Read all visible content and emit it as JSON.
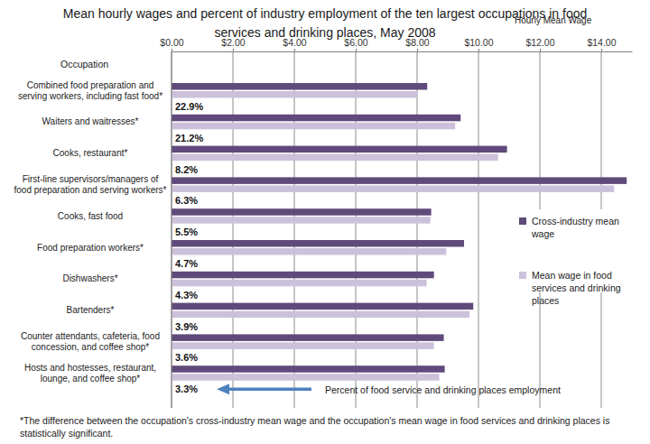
{
  "chart_data": {
    "type": "bar",
    "orientation": "horizontal",
    "title": "Mean hourly wages and percent of industry employment of the ten largest occupations in food services and drinking places, May 2008",
    "x_label": "Hourly Mean Wage",
    "y_label": "Occupation",
    "categories": [
      "Combined food preparation and serving workers, including fast food*",
      "Waiters and waitresses*",
      "Cooks, restaurant*",
      "First-line supervisors/managers of food preparation and serving workers*",
      "Cooks, fast food",
      "Food preparation workers*",
      "Dishwashers*",
      "Bartenders*",
      "Counter attendants, cafeteria, food concession, and coffee shop*",
      "Hosts and hostesses, restaurant, lounge, and coffee shop*"
    ],
    "series": [
      {
        "name": "Cross-industry mean wage",
        "color": "#604a7b",
        "values": [
          8.33,
          9.42,
          10.93,
          14.83,
          8.46,
          9.53,
          8.55,
          9.83,
          8.87,
          8.9
        ]
      },
      {
        "name": "Mean wage in food services and drinking places",
        "color": "#ccc1da",
        "values": [
          8.03,
          9.24,
          10.64,
          14.42,
          8.43,
          8.95,
          8.31,
          9.71,
          8.55,
          8.72
        ]
      }
    ],
    "employment_share": {
      "name": "Percent of food service and drinking places employment",
      "values": [
        22.9,
        21.2,
        8.2,
        6.3,
        5.5,
        4.7,
        4.3,
        3.9,
        3.6,
        3.3
      ],
      "value_labels": [
        "22.9%",
        "21.2%",
        "8.2%",
        "6.3%",
        "5.5%",
        "4.7%",
        "4.3%",
        "3.9%",
        "3.6%",
        "3.3%"
      ]
    },
    "xlim": [
      0,
      15
    ],
    "xticks": [
      {
        "value": 0,
        "label": "$0.00"
      },
      {
        "value": 2,
        "label": "$2.00"
      },
      {
        "value": 4,
        "label": "$4.00"
      },
      {
        "value": 6,
        "label": "$6.00"
      },
      {
        "value": 8,
        "label": "$8.00"
      },
      {
        "value": 10,
        "label": "$10.00"
      },
      {
        "value": 12,
        "label": "$12.00"
      },
      {
        "value": 14,
        "label": "$14.00"
      }
    ],
    "grid": true,
    "legend": "right",
    "footnote": "*The difference between the occupation's cross-industry mean wage and the occupation's mean wage in food services and drinking places is statistically significant."
  }
}
